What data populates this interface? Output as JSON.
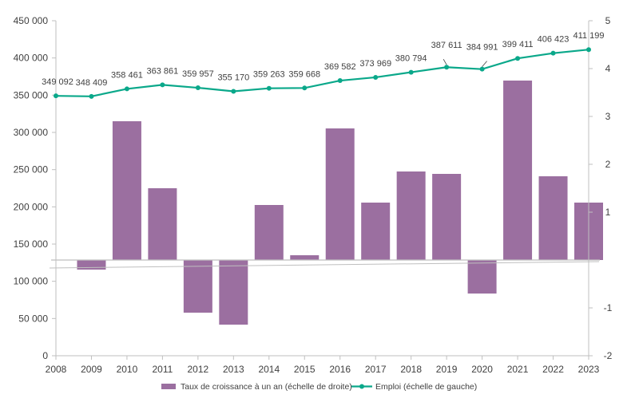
{
  "chart_data": {
    "type": "bar",
    "categories": [
      "2008",
      "2009",
      "2010",
      "2011",
      "2012",
      "2013",
      "2014",
      "2015",
      "2016",
      "2017",
      "2018",
      "2019",
      "2020",
      "2021",
      "2022",
      "2023"
    ],
    "series": [
      {
        "name": "Taux de croissance à un an (échelle de droite)",
        "type": "bar",
        "axis": "right",
        "color": "#9b6fa0",
        "values": [
          null,
          -0.2,
          2.9,
          1.5,
          -1.1,
          -1.35,
          1.15,
          0.1,
          2.75,
          1.2,
          1.85,
          1.8,
          -0.7,
          3.75,
          1.75,
          1.2
        ]
      },
      {
        "name": "Emploi (échelle de gauche)",
        "type": "line",
        "axis": "left",
        "color": "#0aa88a",
        "values": [
          349092,
          348409,
          358461,
          363861,
          359957,
          355170,
          359263,
          359668,
          369582,
          373969,
          380794,
          387611,
          384991,
          399411,
          406423,
          411199
        ],
        "labels": [
          "349 092",
          "348 409",
          "358 461",
          "363 861",
          "359 957",
          "355 170",
          "359 263",
          "359 668",
          "369 582",
          "373 969",
          "380 794",
          "387 611",
          "384 991",
          "399 411",
          "406 423",
          "411 199"
        ]
      }
    ],
    "y_left": {
      "min": 0,
      "max": 450000,
      "ticks": [
        0,
        50000,
        100000,
        150000,
        200000,
        250000,
        300000,
        350000,
        400000,
        450000
      ],
      "tick_labels": [
        "0",
        "50 000",
        "100 000",
        "150 000",
        "200 000",
        "250 000",
        "300 000",
        "350 000",
        "400 000",
        "450 000"
      ]
    },
    "y_right": {
      "min": -2,
      "max": 5,
      "ticks": [
        -2,
        -1,
        1,
        2,
        3,
        4,
        5
      ],
      "tick_labels": [
        "-2",
        "-1",
        "1",
        "2",
        "3",
        "4",
        "5"
      ]
    },
    "grid": false,
    "legend_position": "bottom"
  }
}
